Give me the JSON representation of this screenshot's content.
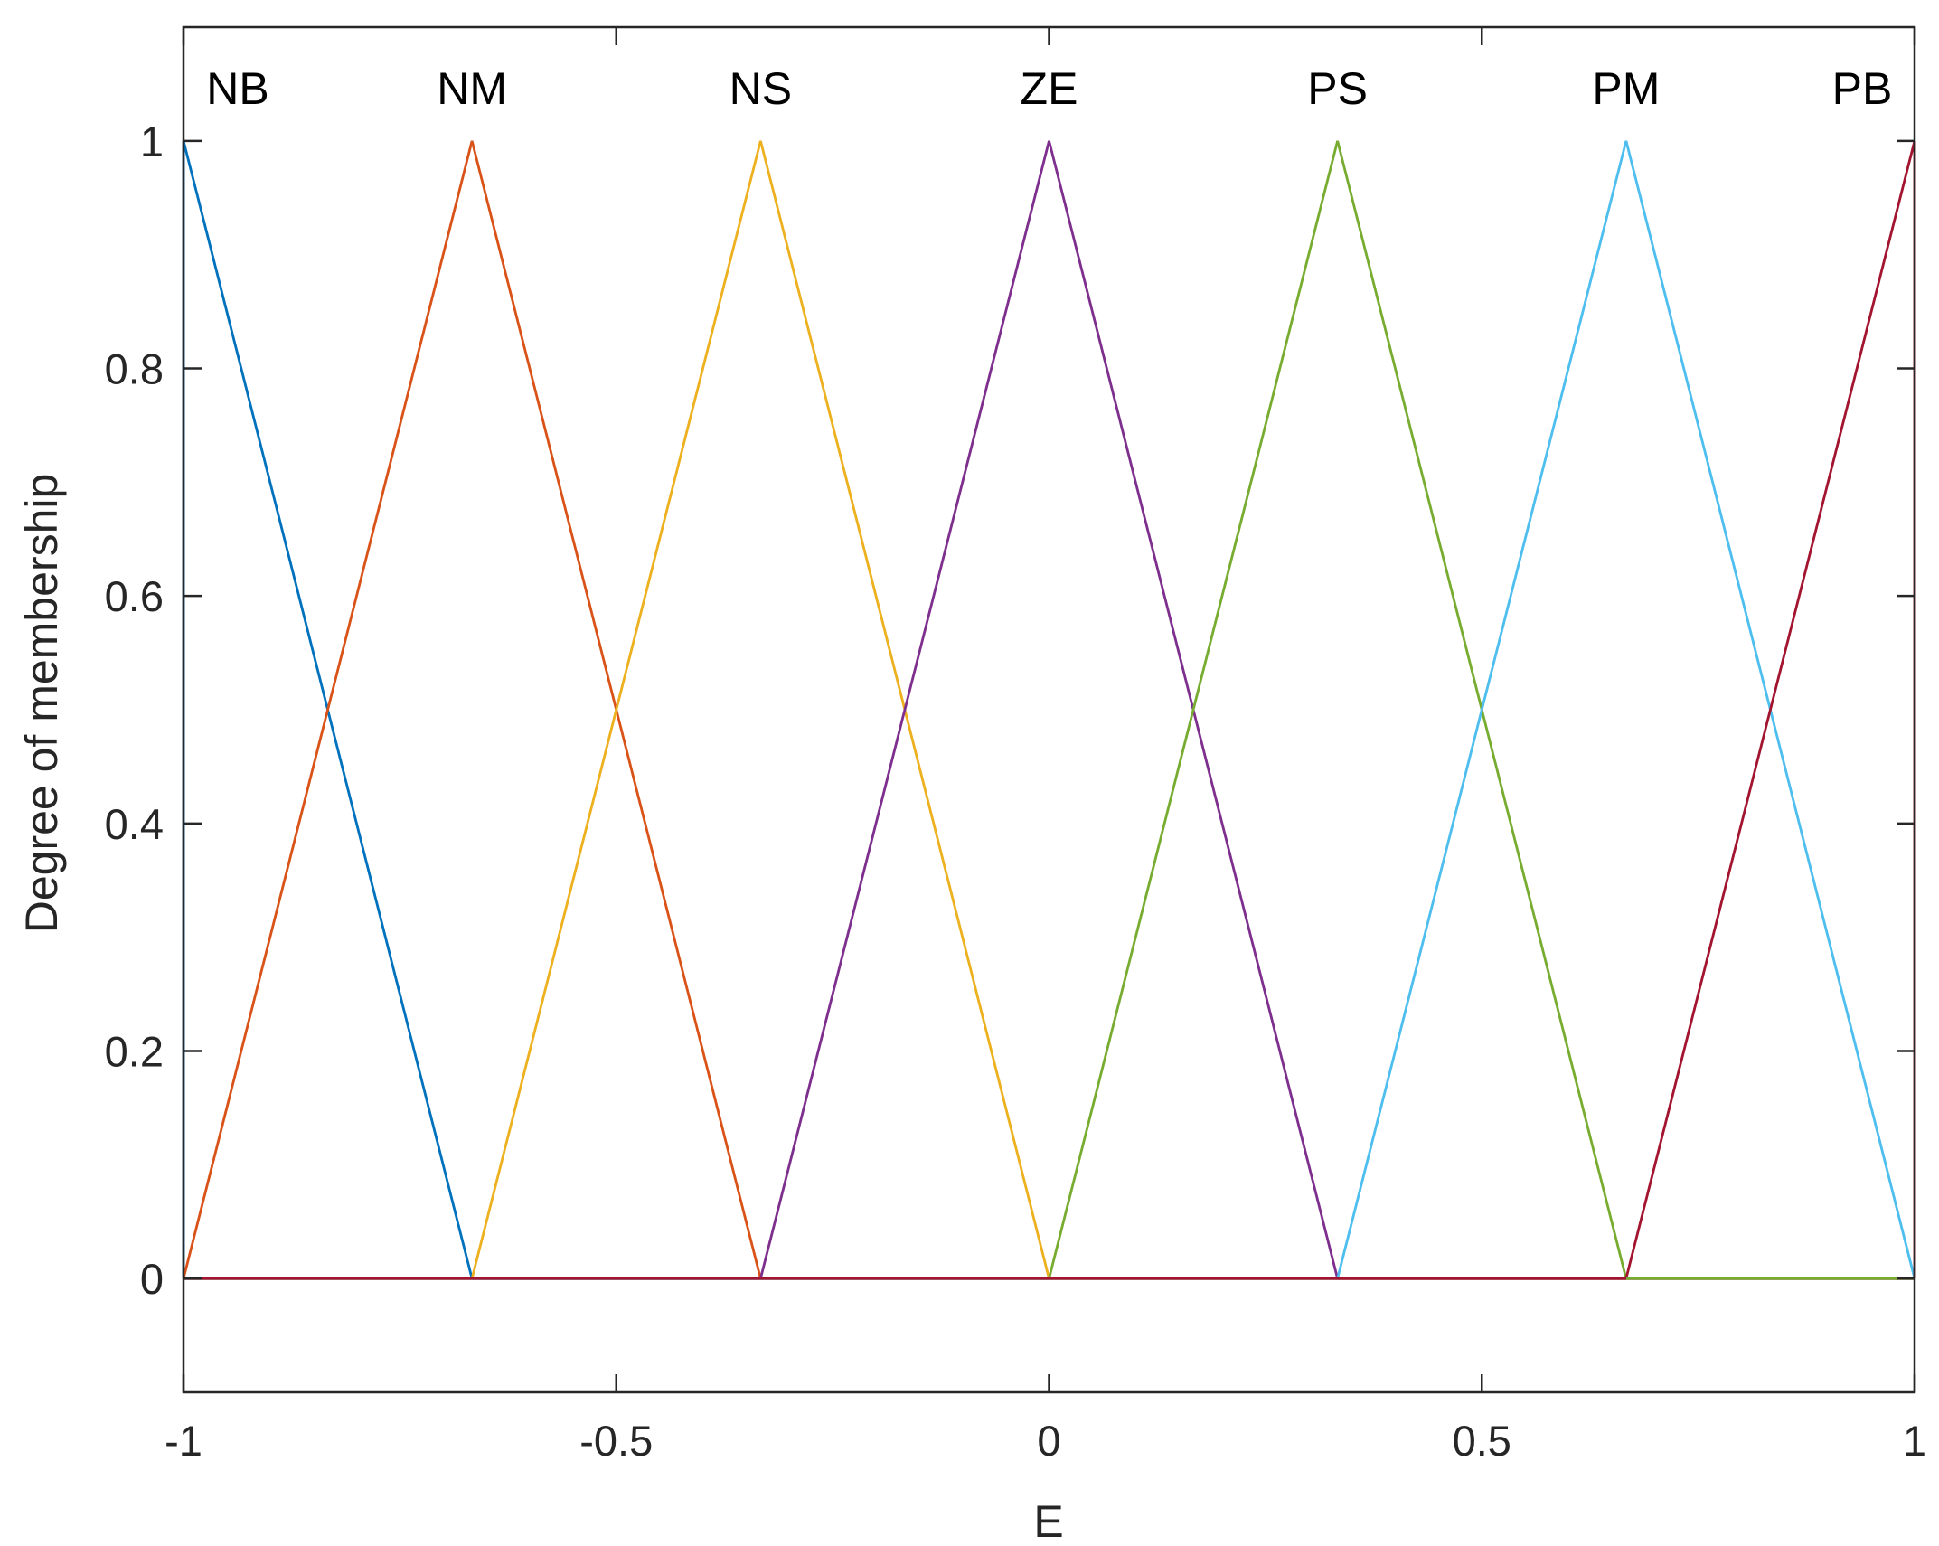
{
  "chart_data": {
    "type": "line",
    "title": "",
    "xlabel": "E",
    "ylabel": "Degree of membership",
    "xlim": [
      -1,
      1
    ],
    "ylim": [
      -0.1,
      1.1
    ],
    "xticks": [
      -1,
      -0.5,
      0,
      0.5,
      1
    ],
    "xtick_labels": [
      "-1",
      "-0.5",
      "0",
      "0.5",
      "1"
    ],
    "yticks": [
      0,
      0.2,
      0.4,
      0.6,
      0.8,
      1
    ],
    "ytick_labels": [
      "0",
      "0.2",
      "0.4",
      "0.6",
      "0.8",
      "1"
    ],
    "grid": false,
    "box": true,
    "series": [
      {
        "name": "NB",
        "color": "#0072BD",
        "x": [
          -1,
          -1,
          -0.6667
        ],
        "y": [
          0,
          1,
          0
        ]
      },
      {
        "name": "NM",
        "color": "#D95319",
        "x": [
          -1,
          -0.6667,
          -0.3333
        ],
        "y": [
          0,
          1,
          0
        ]
      },
      {
        "name": "NS",
        "color": "#EDB120",
        "x": [
          -0.6667,
          -0.3333,
          0
        ],
        "y": [
          0,
          1,
          0
        ]
      },
      {
        "name": "ZE",
        "color": "#7E2F8E",
        "x": [
          -0.3333,
          0,
          0.3333
        ],
        "y": [
          0,
          1,
          0
        ]
      },
      {
        "name": "PS",
        "color": "#77AC30",
        "x": [
          0,
          0.3333,
          0.6667
        ],
        "y": [
          0,
          1,
          0
        ]
      },
      {
        "name": "PM",
        "color": "#4DBEEE",
        "x": [
          0.3333,
          0.6667,
          1
        ],
        "y": [
          0,
          1,
          0
        ]
      },
      {
        "name": "PB",
        "color": "#A2142F",
        "x": [
          0.6667,
          1,
          1
        ],
        "y": [
          0,
          1,
          0
        ]
      }
    ]
  }
}
